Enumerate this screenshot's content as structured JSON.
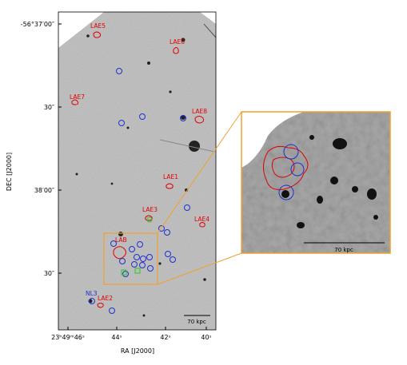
{
  "axes": {
    "x_label": "RA [J2000]",
    "y_label": "DEC [J2000]",
    "x_ticks": [
      "23ʰ49ᵐ46ˢ",
      "44ˢ",
      "42ˢ",
      "40ˢ"
    ],
    "y_ticks": [
      "-56°37′00″",
      "30″",
      "38′00″",
      "30″"
    ]
  },
  "sources": [
    "LAE5",
    "LAE6",
    "LAE7",
    "LAE8",
    "LAE1",
    "LAE3",
    "LAE4",
    "LAB",
    "NL3",
    "LAE2"
  ],
  "scale_bar": "70 kpc",
  "inset": {
    "scale_bar": "70 kpc"
  }
}
